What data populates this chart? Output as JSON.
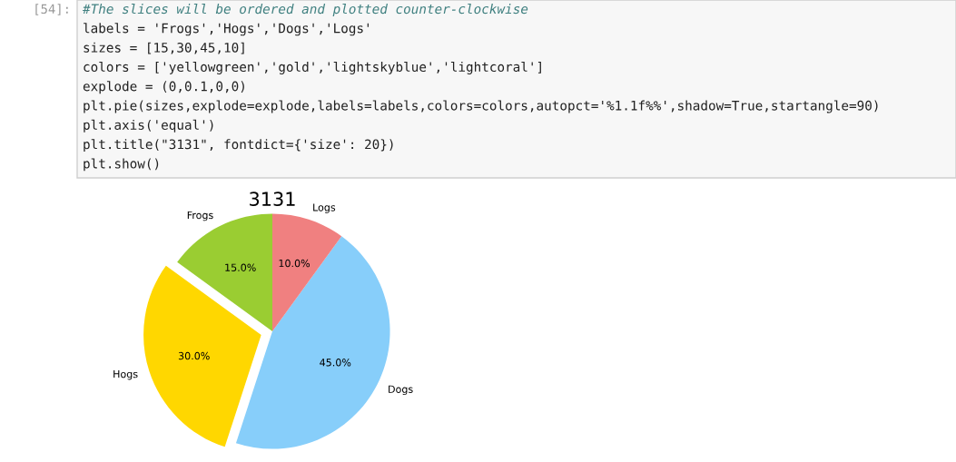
{
  "chart_data": {
    "type": "pie",
    "title": "3131",
    "categories": [
      "Frogs",
      "Hogs",
      "Dogs",
      "Logs"
    ],
    "values": [
      15,
      30,
      45,
      10
    ],
    "colors": [
      "#9acd32",
      "#ffd700",
      "#87cefa",
      "#f08080"
    ],
    "value_labels": [
      "15.0%",
      "30.0%",
      "45.0%",
      "10.0%"
    ],
    "annotations": [
      "[54]:",
      "#The slices will be ordered and plotted counter-clockwise",
      "labels = 'Frogs','Hogs','Dogs','Logs'",
      "sizes = [15,30,45,10]",
      "colors = ['yellowgreen','gold','lightskyblue','lightcoral']",
      "explode = (0,0.1,0,0)",
      "plt.pie(sizes,explode=explode,labels=labels,colors=colors,autopct='%1.1f%%',shadow=True,startangle=90)",
      "plt.axis('equal')",
      "plt.title(\"3131\", fontdict={'size': 20})",
      "plt.show()"
    ]
  }
}
